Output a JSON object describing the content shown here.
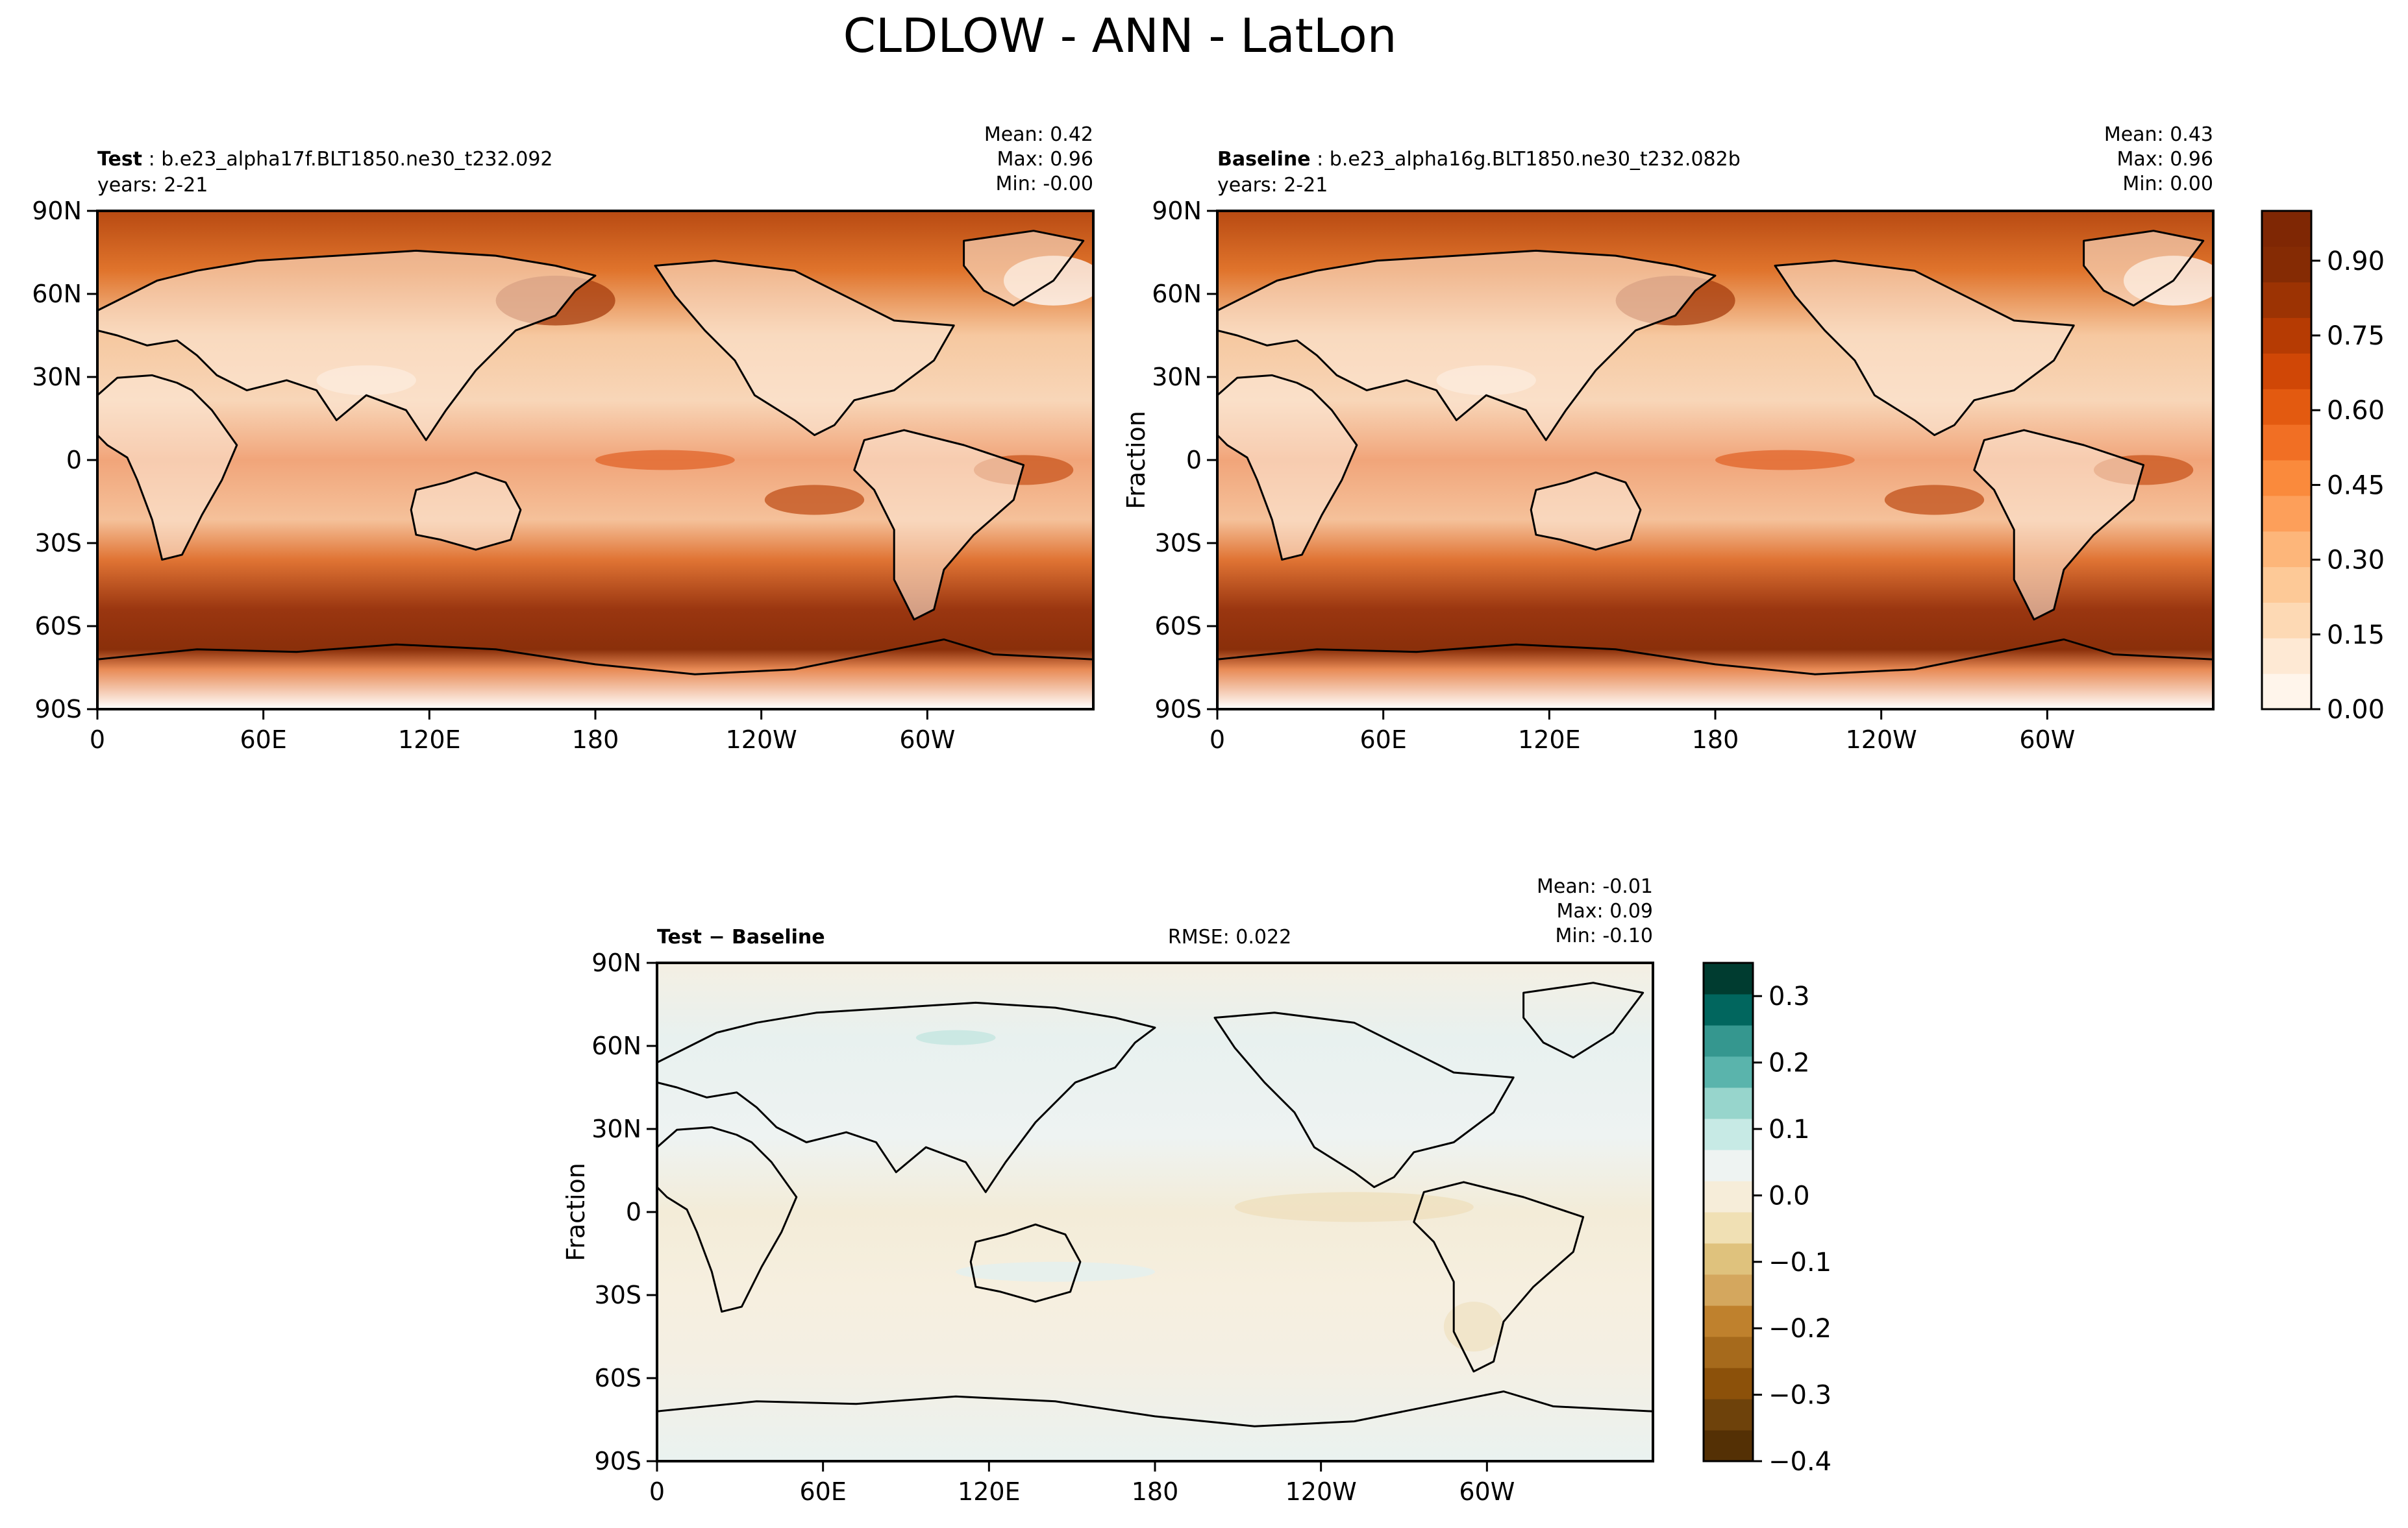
{
  "figure": {
    "title": "CLDLOW - ANN - LatLon"
  },
  "chart_data": [
    {
      "type": "heatmap",
      "panel": "test",
      "label_bold": "Test",
      "label_rest": " : b.e23_alpha17f.BLT1850.ne30_t232.092",
      "years": "years: 2-21",
      "stats": [
        "Mean:  0.42",
        "Max:  0.96",
        "Min: -0.00"
      ],
      "ylabel": "",
      "x_ticks": [
        "0",
        "60E",
        "120E",
        "180",
        "120W",
        "60W"
      ],
      "y_ticks": [
        "90N",
        "60N",
        "30N",
        "0",
        "30S",
        "60S",
        "90S"
      ],
      "xlim": [
        0,
        360
      ],
      "ylim": [
        -90,
        90
      ]
    },
    {
      "type": "heatmap",
      "panel": "baseline",
      "label_bold": "Baseline",
      "label_rest": " : b.e23_alpha16g.BLT1850.ne30_t232.082b",
      "years": "years: 2-21",
      "stats": [
        "Mean:  0.43",
        "Max:  0.96",
        "Min:  0.00"
      ],
      "ylabel": "Fraction",
      "x_ticks": [
        "0",
        "60E",
        "120E",
        "180",
        "120W",
        "60W"
      ],
      "y_ticks": [
        "90N",
        "60N",
        "30N",
        "0",
        "30S",
        "60S",
        "90S"
      ],
      "xlim": [
        0,
        360
      ],
      "ylim": [
        -90,
        90
      ]
    },
    {
      "type": "heatmap",
      "panel": "diff",
      "label_bold": "Test − Baseline",
      "label_rest": "",
      "rmse": "RMSE: 0.022",
      "stats": [
        "Mean: -0.01",
        "Max:  0.09",
        "Min: -0.10"
      ],
      "ylabel": "Fraction",
      "x_ticks": [
        "0",
        "60E",
        "120E",
        "180",
        "120W",
        "60W"
      ],
      "y_ticks": [
        "90N",
        "60N",
        "30N",
        "0",
        "30S",
        "60S",
        "90S"
      ],
      "xlim": [
        0,
        360
      ],
      "ylim": [
        -90,
        90
      ]
    }
  ],
  "colorbars": {
    "main": {
      "range": [
        0,
        1
      ],
      "tick_values": [
        0,
        0.15,
        0.3,
        0.45,
        0.6,
        0.75,
        0.9
      ],
      "tick_labels": [
        "0.00",
        "0.15",
        "0.30",
        "0.45",
        "0.60",
        "0.75",
        "0.90"
      ],
      "colors": [
        "#fff5eb",
        "#fee9d4",
        "#fdd9b4",
        "#fdc997",
        "#fdb67a",
        "#fd9f5a",
        "#fa8a3c",
        "#f16f24",
        "#e35a10",
        "#d04706",
        "#b63b03",
        "#9c3303",
        "#852b04",
        "#7f2704"
      ]
    },
    "diff": {
      "range": [
        -0.4,
        0.35
      ],
      "tick_values": [
        -0.4,
        -0.3,
        -0.2,
        -0.1,
        0.0,
        0.1,
        0.2,
        0.3
      ],
      "tick_labels": [
        "−0.4",
        "−0.3",
        "−0.2",
        "−0.1",
        "0.0",
        "0.1",
        "0.2",
        "0.3"
      ],
      "colors": [
        "#543005",
        "#6e420b",
        "#8c510a",
        "#a66a1c",
        "#bf812d",
        "#d4a75e",
        "#dfc27d",
        "#f0e0b4",
        "#f6edd9",
        "#eef3f2",
        "#c7eae5",
        "#97d5cc",
        "#5ab4ac",
        "#35978f",
        "#01665e",
        "#003c30"
      ]
    }
  }
}
